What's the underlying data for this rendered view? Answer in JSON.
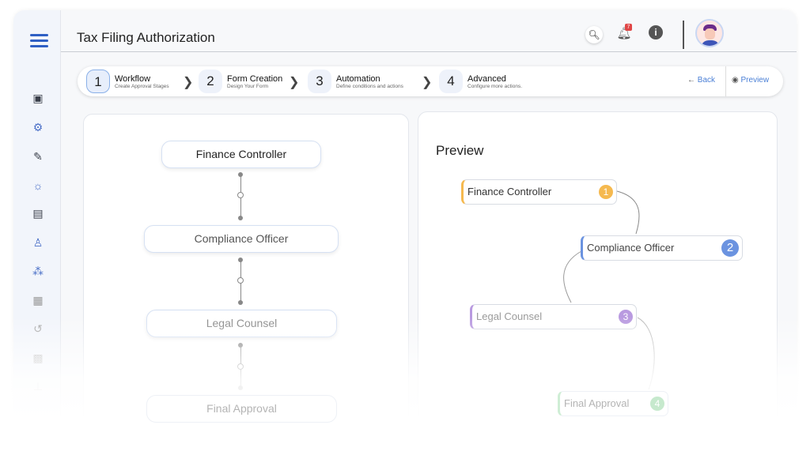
{
  "header": {
    "title": "Tax Filing Authorization",
    "notification_count": "7"
  },
  "sidebar": {
    "items": [
      "dashboard-icon",
      "workflow-icon",
      "form-edit-icon",
      "automation-icon",
      "document-icon",
      "user-settings-icon",
      "network-icon",
      "blocks-icon",
      "history-icon",
      "briefcase-icon",
      "hierarchy-icon"
    ]
  },
  "stepper": {
    "steps": [
      {
        "num": "1",
        "title": "Workflow",
        "sub": "Create Approval Stages"
      },
      {
        "num": "2",
        "title": "Form Creation",
        "sub": "Design Your Form"
      },
      {
        "num": "3",
        "title": "Automation",
        "sub": "Define conditions and actions"
      },
      {
        "num": "4",
        "title": "Advanced",
        "sub": "Configure more actions."
      }
    ],
    "back": "Back",
    "preview": "Preview"
  },
  "workflow": {
    "nodes": [
      "Finance Controller",
      "Compliance Officer",
      "Legal Counsel",
      "Final Approval"
    ]
  },
  "preview": {
    "title": "Preview",
    "nodes": [
      {
        "label": "Finance Controller",
        "num": "1",
        "color": "#f5b94f"
      },
      {
        "label": "Compliance Officer",
        "num": "2",
        "color": "#6b93e0"
      },
      {
        "label": "Legal Counsel",
        "num": "3",
        "color": "#b99ae0"
      },
      {
        "label": "Final Approval",
        "num": "4",
        "color": "#7cc98a"
      }
    ]
  }
}
